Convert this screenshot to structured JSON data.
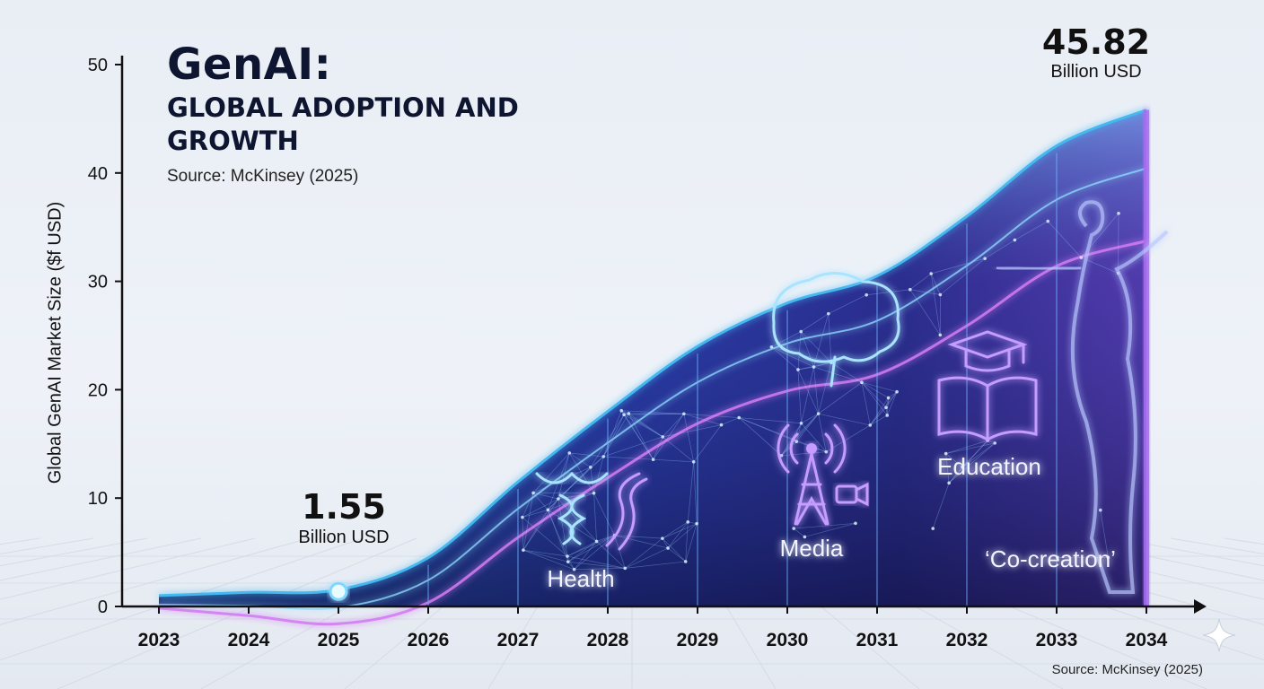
{
  "header": {
    "title": "GenAI:",
    "subtitle": "GLOBAL ADOPTION AND GROWTH",
    "source_top": "Source: McKinsey (2025)"
  },
  "footer": {
    "source_bottom": "Source: McKinsey (2025)"
  },
  "chart_data": {
    "type": "area",
    "title": "GenAI: GLOBAL ADOPTION AND GROWTH",
    "xlabel": "",
    "ylabel": "Global GenAI Market Size ($f USD)",
    "ylim": [
      0,
      50
    ],
    "yticks": [
      0,
      10,
      20,
      30,
      40,
      50
    ],
    "x": [
      "2023",
      "2024",
      "2025",
      "2026",
      "2027",
      "2028",
      "2029",
      "2030",
      "2031",
      "2032",
      "2033",
      "2034"
    ],
    "series": [
      {
        "values": [
          1.0,
          1.3,
          1.55,
          4.5,
          11.5,
          18.0,
          24.0,
          28.0,
          30.5,
          36.0,
          42.5,
          45.82
        ]
      }
    ],
    "annotations": [
      {
        "x": "2025",
        "value_label": "1.55",
        "unit_label": "Billion USD"
      },
      {
        "x": "2034",
        "value_label": "45.82",
        "unit_label": "Billion USD"
      }
    ],
    "sector_labels": [
      {
        "x": "2028",
        "text": "Health",
        "icon": "caduceus-dna-icon"
      },
      {
        "x": "2030",
        "text": "Media",
        "icon": "broadcast-tower-icon"
      },
      {
        "x": "2032",
        "text": "Education",
        "icon": "book-graduation-cap-icon"
      },
      {
        "x": "2033",
        "text": "‘Co-creation’",
        "icon": "human-figure-icon"
      }
    ],
    "grid": false,
    "colors": {
      "area_top": "#45b8f0",
      "area_mid": "#3a4fc8",
      "area_bottom": "#1a1a5a",
      "trend_line": "#d27cf2",
      "accent_purple": "#a86df0"
    }
  }
}
